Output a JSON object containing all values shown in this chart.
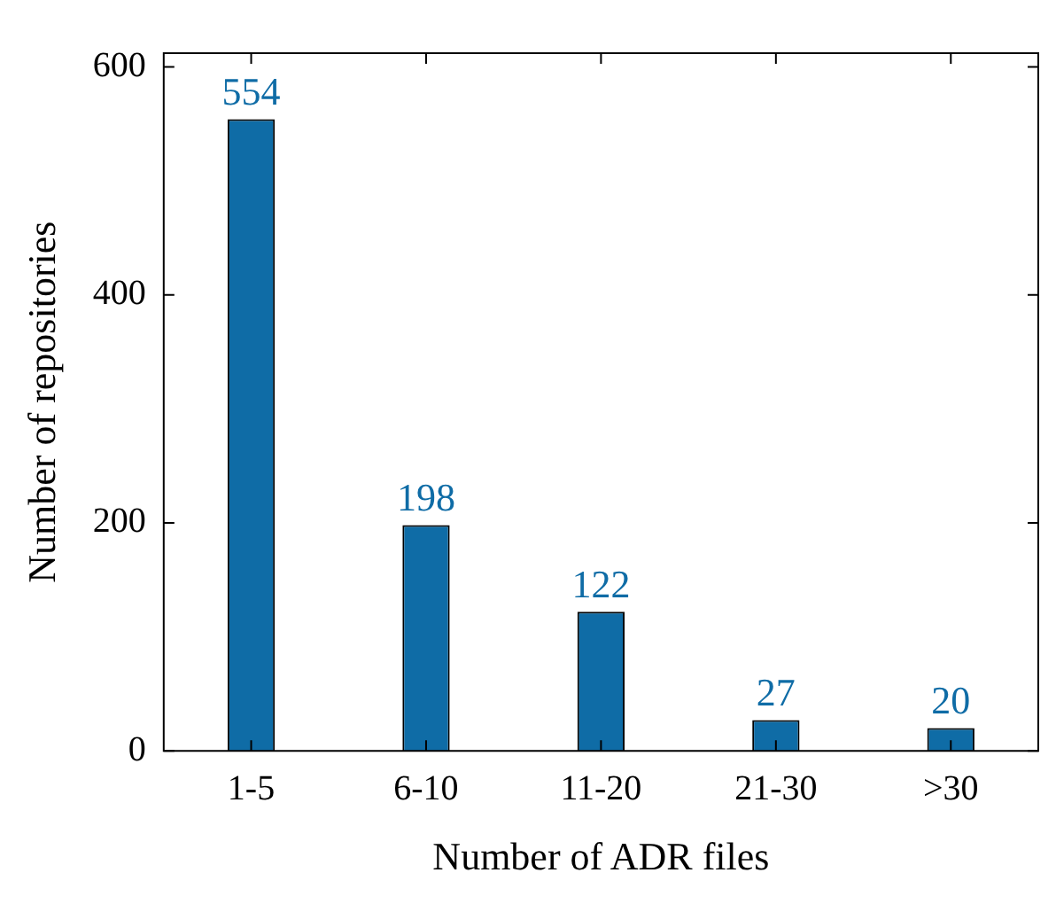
{
  "chart_data": {
    "type": "bar",
    "xlabel": "Number of ADR files",
    "ylabel": "Number of repositories",
    "categories": [
      "1-5",
      "6-10",
      "11-20",
      "21-30",
      ">30"
    ],
    "values": [
      554,
      198,
      122,
      27,
      20
    ],
    "color": "#0f6ca6",
    "ylim": [
      0,
      612
    ],
    "yticks": [
      0,
      200,
      400,
      600
    ],
    "grid": false,
    "data_labels": true
  }
}
